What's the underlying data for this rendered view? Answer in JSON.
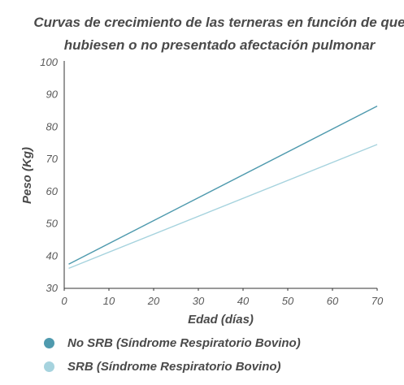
{
  "chart_data": {
    "type": "line",
    "title_line1": "Curvas de crecimiento de las terneras en  función de que",
    "title_line2": "hubiesen o no presentado afectación pulmonar",
    "xlabel": "Edad (días)",
    "ylabel": "Peso (Kg)",
    "xlim": [
      0,
      70
    ],
    "ylim": [
      30,
      100
    ],
    "x_ticks": [
      "0",
      "10",
      "20",
      "30",
      "40",
      "50",
      "60",
      "70"
    ],
    "y_ticks": [
      "30",
      "40",
      "50",
      "60",
      "70",
      "80",
      "90",
      "100"
    ],
    "grid": false,
    "legend_position": "bottom",
    "series": [
      {
        "name": "No SRB (Síndrome Respiratorio Bovino)",
        "color": "#4f9aae",
        "x": [
          1,
          70
        ],
        "y": [
          37.5,
          86.5
        ]
      },
      {
        "name": "SRB (Síndrome Respiratorio Bovino)",
        "color": "#a6d3de",
        "x": [
          1,
          70
        ],
        "y": [
          36.2,
          74.6
        ]
      }
    ]
  }
}
